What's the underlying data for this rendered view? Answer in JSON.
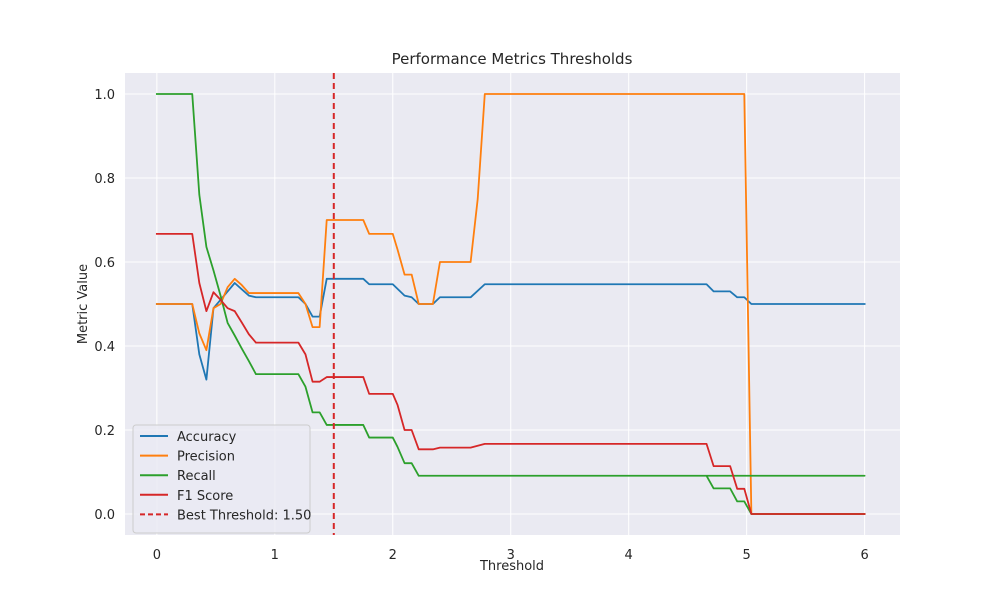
{
  "chart_data": {
    "type": "line",
    "title": "Performance Metrics Thresholds",
    "xlabel": "Threshold",
    "ylabel": "Metric Value",
    "xlim": [
      -0.27,
      6.3
    ],
    "ylim": [
      -0.05,
      1.05
    ],
    "xticks": [
      0,
      1,
      2,
      3,
      4,
      5,
      6
    ],
    "yticks": [
      0.0,
      0.2,
      0.4,
      0.6,
      0.8,
      1.0
    ],
    "xtick_labels": [
      "0",
      "1",
      "2",
      "3",
      "4",
      "5",
      "6"
    ],
    "ytick_labels": [
      "0.0",
      "0.2",
      "0.4",
      "0.6",
      "0.8",
      "1.0"
    ],
    "grid": true,
    "legend_position": "lower-left",
    "background": "#eaeaf2",
    "series": [
      {
        "name": "Accuracy",
        "color": "#1f77b4",
        "points": [
          [
            0,
            0.5
          ],
          [
            0.3,
            0.5
          ],
          [
            0.36,
            0.38
          ],
          [
            0.42,
            0.32
          ],
          [
            0.48,
            0.49
          ],
          [
            0.54,
            0.51
          ],
          [
            0.6,
            0.53
          ],
          [
            0.66,
            0.55
          ],
          [
            0.72,
            0.535
          ],
          [
            0.78,
            0.52
          ],
          [
            0.84,
            0.516
          ],
          [
            1.0,
            0.516
          ],
          [
            1.2,
            0.516
          ],
          [
            1.26,
            0.5
          ],
          [
            1.32,
            0.47
          ],
          [
            1.38,
            0.47
          ],
          [
            1.44,
            0.56
          ],
          [
            1.5,
            0.56
          ],
          [
            1.75,
            0.56
          ],
          [
            1.8,
            0.547
          ],
          [
            2.0,
            0.547
          ],
          [
            2.1,
            0.52
          ],
          [
            2.16,
            0.516
          ],
          [
            2.22,
            0.5
          ],
          [
            2.34,
            0.5
          ],
          [
            2.4,
            0.516
          ],
          [
            2.66,
            0.516
          ],
          [
            2.78,
            0.547
          ],
          [
            4.66,
            0.547
          ],
          [
            4.72,
            0.53
          ],
          [
            4.86,
            0.53
          ],
          [
            4.92,
            0.516
          ],
          [
            4.98,
            0.516
          ],
          [
            5.04,
            0.5
          ],
          [
            6.0,
            0.5
          ]
        ]
      },
      {
        "name": "Precision",
        "color": "#ff7f0e",
        "points": [
          [
            0,
            0.5
          ],
          [
            0.3,
            0.5
          ],
          [
            0.36,
            0.43
          ],
          [
            0.42,
            0.39
          ],
          [
            0.48,
            0.49
          ],
          [
            0.54,
            0.5
          ],
          [
            0.6,
            0.54
          ],
          [
            0.66,
            0.56
          ],
          [
            0.72,
            0.545
          ],
          [
            0.78,
            0.526
          ],
          [
            0.84,
            0.526
          ],
          [
            1.0,
            0.526
          ],
          [
            1.2,
            0.526
          ],
          [
            1.26,
            0.5
          ],
          [
            1.32,
            0.445
          ],
          [
            1.38,
            0.445
          ],
          [
            1.44,
            0.7
          ],
          [
            1.5,
            0.7
          ],
          [
            1.75,
            0.7
          ],
          [
            1.8,
            0.667
          ],
          [
            2.0,
            0.667
          ],
          [
            2.04,
            0.63
          ],
          [
            2.1,
            0.57
          ],
          [
            2.16,
            0.57
          ],
          [
            2.22,
            0.5
          ],
          [
            2.34,
            0.5
          ],
          [
            2.4,
            0.6
          ],
          [
            2.66,
            0.6
          ],
          [
            2.72,
            0.75
          ],
          [
            2.78,
            1.0
          ],
          [
            4.98,
            1.0
          ],
          [
            5.04,
            0.0
          ],
          [
            6.0,
            0.0
          ]
        ]
      },
      {
        "name": "Recall",
        "color": "#2ca02c",
        "points": [
          [
            0,
            1.0
          ],
          [
            0.3,
            1.0
          ],
          [
            0.36,
            0.76
          ],
          [
            0.42,
            0.636
          ],
          [
            0.48,
            0.58
          ],
          [
            0.54,
            0.52
          ],
          [
            0.6,
            0.455
          ],
          [
            0.66,
            0.425
          ],
          [
            0.72,
            0.394
          ],
          [
            0.78,
            0.364
          ],
          [
            0.84,
            0.333
          ],
          [
            1.0,
            0.333
          ],
          [
            1.2,
            0.333
          ],
          [
            1.26,
            0.303
          ],
          [
            1.32,
            0.242
          ],
          [
            1.38,
            0.242
          ],
          [
            1.44,
            0.212
          ],
          [
            1.5,
            0.212
          ],
          [
            1.75,
            0.212
          ],
          [
            1.8,
            0.182
          ],
          [
            2.0,
            0.182
          ],
          [
            2.04,
            0.16
          ],
          [
            2.1,
            0.121
          ],
          [
            2.16,
            0.121
          ],
          [
            2.22,
            0.091
          ],
          [
            6.0,
            0.091
          ],
          [
            4.66,
            0.091
          ],
          [
            4.72,
            0.061
          ],
          [
            4.86,
            0.061
          ],
          [
            4.92,
            0.03
          ],
          [
            4.98,
            0.03
          ],
          [
            5.04,
            0.0
          ],
          [
            6.0,
            0.0
          ]
        ]
      },
      {
        "name": "F1 Score",
        "color": "#d62728",
        "points": [
          [
            0,
            0.667
          ],
          [
            0.3,
            0.667
          ],
          [
            0.36,
            0.55
          ],
          [
            0.42,
            0.483
          ],
          [
            0.48,
            0.528
          ],
          [
            0.54,
            0.51
          ],
          [
            0.6,
            0.49
          ],
          [
            0.66,
            0.483
          ],
          [
            0.72,
            0.456
          ],
          [
            0.78,
            0.428
          ],
          [
            0.84,
            0.408
          ],
          [
            1.0,
            0.408
          ],
          [
            1.2,
            0.408
          ],
          [
            1.26,
            0.38
          ],
          [
            1.32,
            0.315
          ],
          [
            1.38,
            0.315
          ],
          [
            1.44,
            0.326
          ],
          [
            1.5,
            0.326
          ],
          [
            1.75,
            0.326
          ],
          [
            1.8,
            0.286
          ],
          [
            2.0,
            0.286
          ],
          [
            2.04,
            0.26
          ],
          [
            2.1,
            0.2
          ],
          [
            2.16,
            0.2
          ],
          [
            2.22,
            0.154
          ],
          [
            2.34,
            0.154
          ],
          [
            2.4,
            0.158
          ],
          [
            2.66,
            0.158
          ],
          [
            2.78,
            0.167
          ],
          [
            4.66,
            0.167
          ],
          [
            4.72,
            0.114
          ],
          [
            4.86,
            0.114
          ],
          [
            4.92,
            0.06
          ],
          [
            4.98,
            0.06
          ],
          [
            5.04,
            0.0
          ],
          [
            6.0,
            0.0
          ]
        ]
      }
    ],
    "reference_lines": [
      {
        "name": "Best Threshold: 1.50",
        "orientation": "vertical",
        "x": 1.5,
        "color": "#d62728",
        "style": "dashed"
      }
    ]
  }
}
